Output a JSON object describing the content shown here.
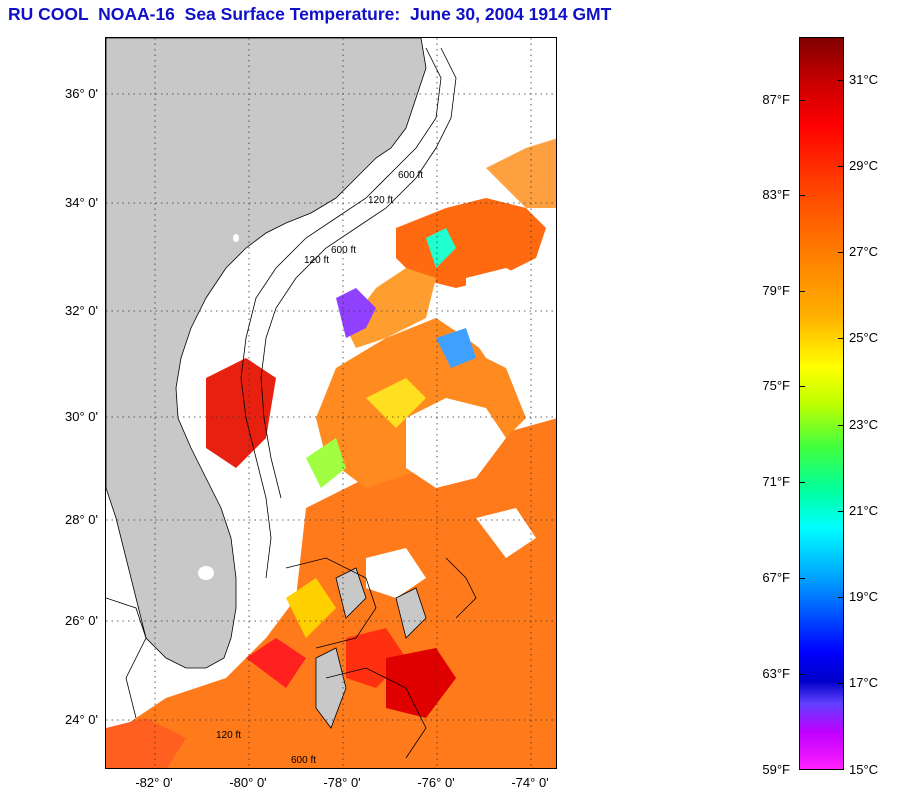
{
  "title": "RU COOL  NOAA-16  Sea Surface Temperature:  June 30, 2004 1914 GMT",
  "map": {
    "lat_labels": [
      "36° 0'",
      "34° 0'",
      "32° 0'",
      "30° 0'",
      "28° 0'",
      "26° 0'",
      "24° 0'"
    ],
    "lon_labels": [
      "-82° 0'",
      "-80° 0'",
      "-78° 0'",
      "-76° 0'",
      "-74° 0'"
    ],
    "contour_labels": [
      "120 ft",
      "600 ft",
      "120 ft",
      "600 ft",
      "120 ft",
      "600 ft"
    ],
    "land_color": "#c8c8c8",
    "cloud_color": "#ffffff"
  },
  "colorbar": {
    "fahrenheit_labels": [
      "87°F",
      "83°F",
      "79°F",
      "75°F",
      "71°F",
      "67°F",
      "63°F",
      "59°F"
    ],
    "celsius_labels": [
      "31°C",
      "29°C",
      "27°C",
      "25°C",
      "23°C",
      "21°C",
      "19°C",
      "17°C",
      "15°C"
    ],
    "min_f": 59,
    "max_f": 90,
    "min_c": 15,
    "max_c": 32
  }
}
